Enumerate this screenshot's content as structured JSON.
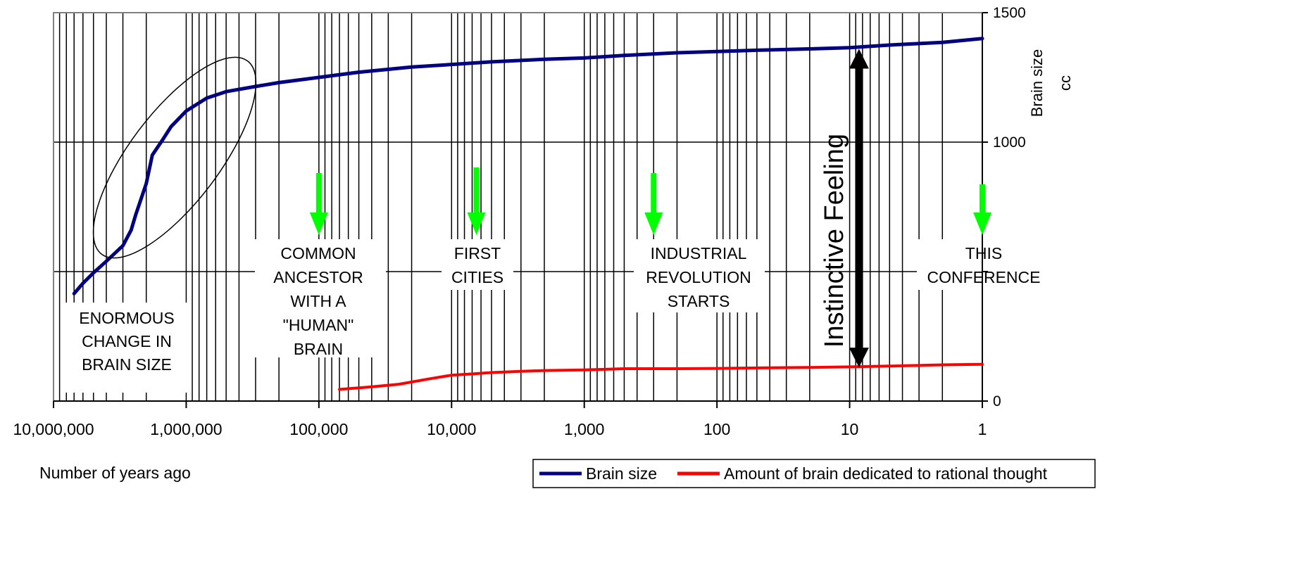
{
  "chart_data": {
    "type": "line",
    "x_scale": "log",
    "x_reversed": true,
    "xlim": [
      10000000,
      1
    ],
    "ylim": [
      0,
      1500
    ],
    "y_axis_side": "right",
    "grid": true,
    "x_axis_label": "Number of years ago",
    "y_axis_label": [
      "Brain size",
      "cc"
    ],
    "x_tick_labels": [
      "10,000,000",
      "1,000,000",
      "100,000",
      "10,000",
      "1,000",
      "100",
      "10",
      "1"
    ],
    "y_tick_labels": [
      "0",
      "1000",
      "1500"
    ],
    "y_ticks": [
      0,
      500,
      1000,
      1500
    ],
    "legend_position": "bottom-right",
    "series": [
      {
        "name": "Brain size",
        "color": "#000080",
        "x": [
          7000000,
          6000000,
          5000000,
          4000000,
          3000000,
          2600000,
          2400000,
          2000000,
          1800000,
          1500000,
          1300000,
          1000000,
          700000,
          500000,
          300000,
          200000,
          100000,
          50000,
          20000,
          10000,
          5000,
          2000,
          1000,
          500,
          200,
          100,
          50,
          20,
          10,
          5,
          2,
          1
        ],
        "values": [
          415,
          455,
          495,
          540,
          600,
          660,
          720,
          840,
          950,
          1010,
          1060,
          1120,
          1170,
          1195,
          1215,
          1230,
          1250,
          1270,
          1290,
          1300,
          1310,
          1320,
          1325,
          1335,
          1345,
          1350,
          1355,
          1360,
          1365,
          1375,
          1385,
          1400
        ]
      },
      {
        "name": "Amount of brain dedicated to rational thought",
        "color": "#ff0000",
        "x": [
          70000,
          40000,
          25000,
          15000,
          10000,
          7000,
          5000,
          3000,
          2000,
          1000,
          500,
          200,
          100,
          50,
          20,
          10,
          5,
          2,
          1
        ],
        "values": [
          45,
          55,
          65,
          85,
          100,
          105,
          110,
          115,
          118,
          120,
          125,
          125,
          126,
          128,
          130,
          132,
          135,
          140,
          142
        ]
      }
    ],
    "annotations": {
      "enormous_change": [
        "ENORMOUS",
        "CHANGE IN",
        "BRAIN SIZE"
      ],
      "common_ancestor": [
        "COMMON",
        "ANCESTOR",
        "WITH A",
        "\"HUMAN\"",
        "BRAIN"
      ],
      "first_cities": [
        "FIRST",
        "CITIES"
      ],
      "industrial_revolution": [
        "INDUSTRIAL",
        "REVOLUTION",
        "STARTS"
      ],
      "this_conference": [
        "THIS",
        "CONFERENCE"
      ],
      "instinctive_feeling": "Instinctive Feeling"
    },
    "event_markers_years_ago": {
      "common_ancestor": 100000,
      "first_cities": 6500,
      "industrial_revolution": 300,
      "this_conference": 1
    },
    "instinctive_feeling_span": {
      "x_years_ago": 8.5,
      "y_range": [
        130,
        1360
      ]
    }
  },
  "colors": {
    "arrow_green": "#00ff00",
    "arrow_black": "#000000",
    "axis": "#000000",
    "grid": "#000000"
  }
}
